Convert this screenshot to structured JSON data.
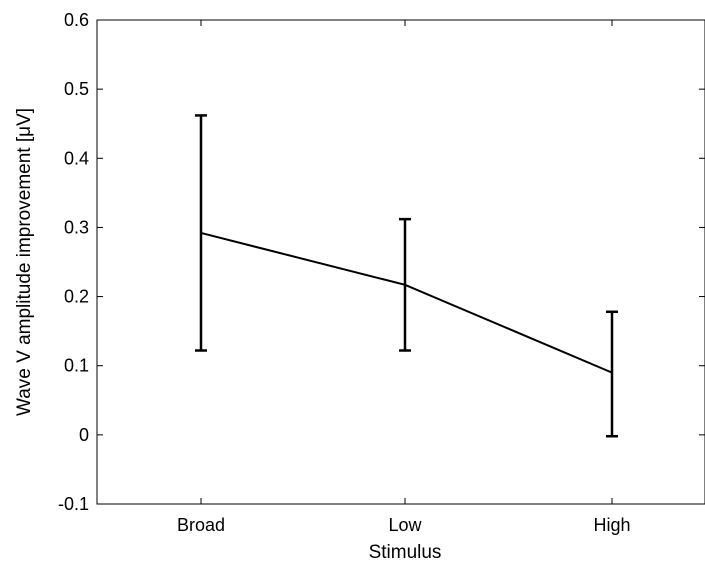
{
  "chart_data": {
    "type": "line",
    "title": "",
    "xlabel": "Stimulus",
    "ylabel": "Wave V amplitude improvement [μV]",
    "categories": [
      "Broad",
      "Low",
      "High"
    ],
    "series": [
      {
        "values": [
          0.292,
          0.217,
          0.09
        ],
        "error_low": [
          0.122,
          0.122,
          -0.002
        ],
        "error_high": [
          0.462,
          0.312,
          0.178
        ]
      }
    ],
    "ylim": [
      -0.1,
      0.6
    ],
    "yticks": [
      -0.1,
      0,
      0.1,
      0.2,
      0.3,
      0.4,
      0.5,
      0.6
    ],
    "ytick_labels": [
      "-0.1",
      "0",
      "0.1",
      "0.2",
      "0.3",
      "0.4",
      "0.5",
      "0.6"
    ],
    "grid": false,
    "legend": "none",
    "line_color": "#000000"
  }
}
